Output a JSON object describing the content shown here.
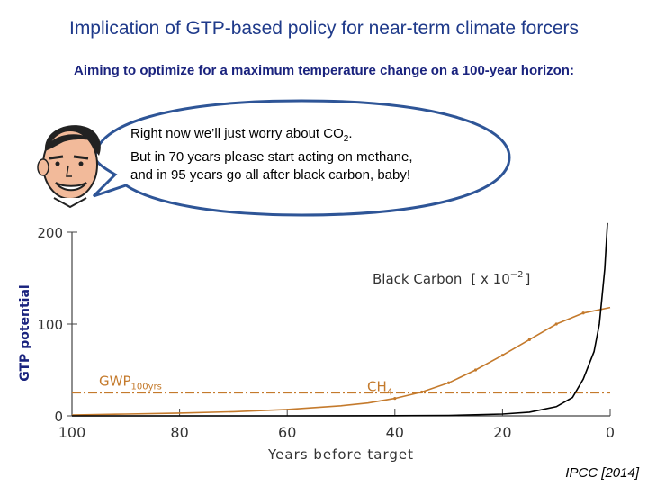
{
  "slide": {
    "title": "Implication of GTP-based policy for near-term climate forcers",
    "subtitle": "Aiming to optimize for a maximum temperature change on a 100-year horizon:",
    "speech_lines": [
      "Right now we’ll just worry about CO",
      "But in 70 years please start acting on methane,",
      "and in 95 years go all after black carbon, baby!"
    ],
    "speech_sub": "2",
    "speech_tail": ".",
    "credit": "IPCC [2014]"
  },
  "chart_data": {
    "type": "line",
    "ylabel": "GTP potential",
    "xlabel": "Years before target",
    "xlim": [
      100,
      0
    ],
    "ylim": [
      0,
      200
    ],
    "x_ticks": [
      "100",
      "80",
      "60",
      "40",
      "20",
      "0"
    ],
    "y_ticks": [
      "0",
      "100",
      "200"
    ],
    "series": [
      {
        "name": "CH",
        "name_sub": "4",
        "color": "#c47a2c",
        "x": [
          100,
          90,
          80,
          70,
          60,
          50,
          45,
          40,
          35,
          30,
          25,
          20,
          15,
          10,
          5,
          0
        ],
        "y": [
          1,
          2,
          3,
          4.5,
          7,
          11,
          14,
          19,
          26,
          36,
          50,
          66,
          83,
          100,
          112,
          118
        ]
      },
      {
        "name": "Black Carbon",
        "scale_label": "[ x 10",
        "scale_exp": "−2",
        "scale_close": "]",
        "color": "#000000",
        "x": [
          100,
          60,
          40,
          30,
          20,
          15,
          10,
          7,
          5,
          3,
          2,
          1,
          0.5
        ],
        "y": [
          0,
          0,
          0.2,
          0.5,
          2,
          4,
          10,
          20,
          40,
          70,
          100,
          160,
          210
        ]
      }
    ],
    "reference_line": {
      "name": "GWP",
      "name_sub": "100yrs",
      "y": 25,
      "color": "#c47a2c"
    }
  }
}
